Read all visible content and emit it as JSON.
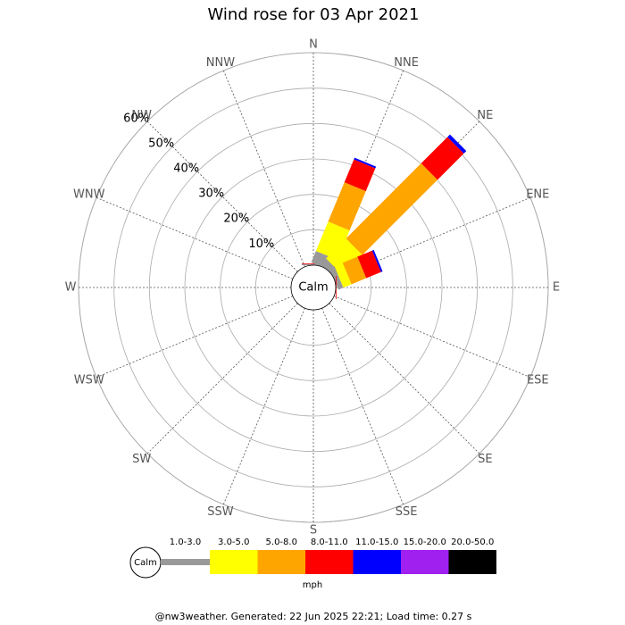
{
  "chart_data": {
    "type": "windrose",
    "title": "Wind rose for 03 Apr 2021",
    "directions": [
      "N",
      "NNE",
      "NE",
      "ENE",
      "E",
      "ESE",
      "SE",
      "SSE",
      "S",
      "SSW",
      "SW",
      "WSW",
      "W",
      "WNW",
      "NW",
      "NNW"
    ],
    "calm_label": "Calm",
    "rlim": [
      0,
      60
    ],
    "rticks": [
      {
        "value": 10,
        "label": "10%"
      },
      {
        "value": 20,
        "label": "20%"
      },
      {
        "value": 30,
        "label": "30%"
      },
      {
        "value": 40,
        "label": "40%"
      },
      {
        "value": 50,
        "label": "50%"
      },
      {
        "value": 60,
        "label": "60%"
      }
    ],
    "series": [
      {
        "name": "1.0-3.0",
        "color": "#999999",
        "values": [
          0.3,
          3.5,
          2,
          1.5,
          0,
          0,
          0,
          0,
          0,
          0,
          0,
          0,
          0,
          0,
          0,
          0
        ]
      },
      {
        "name": "3.0-5.0",
        "color": "#ffff00",
        "values": [
          0,
          9,
          8,
          2.5,
          0,
          0,
          0,
          0,
          0,
          0,
          0,
          0,
          0,
          0,
          0,
          0
        ]
      },
      {
        "name": "5.0-8.0",
        "color": "#ffa500",
        "values": [
          0,
          12,
          30,
          4.5,
          0,
          0,
          0,
          0,
          0,
          0,
          0,
          0,
          0,
          0,
          0,
          0
        ]
      },
      {
        "name": "8.0-11.0",
        "color": "#ff0000",
        "values": [
          0.2,
          7,
          10.5,
          4.5,
          0.2,
          0,
          0,
          0,
          0,
          0,
          0,
          0,
          0,
          0,
          0,
          0
        ]
      },
      {
        "name": "11.0-15.0",
        "color": "#0000ff",
        "values": [
          0,
          0.5,
          1,
          0.5,
          0,
          0,
          0,
          0,
          0,
          0,
          0,
          0,
          0,
          0,
          0,
          0
        ]
      },
      {
        "name": "15.0-20.0",
        "color": "#a020f0",
        "values": [
          0,
          0,
          0,
          0,
          0,
          0,
          0,
          0,
          0,
          0,
          0,
          0,
          0,
          0,
          0,
          0
        ]
      },
      {
        "name": "20.0-50.0",
        "color": "#000000",
        "values": [
          0,
          0,
          0,
          0,
          0,
          0,
          0,
          0,
          0,
          0,
          0,
          0,
          0,
          0,
          0,
          0
        ]
      }
    ],
    "legend_unit": "mph",
    "footer": "@nw3weather. Generated: 22 Jun 2025 22:21; Load time: 0.27 s"
  }
}
